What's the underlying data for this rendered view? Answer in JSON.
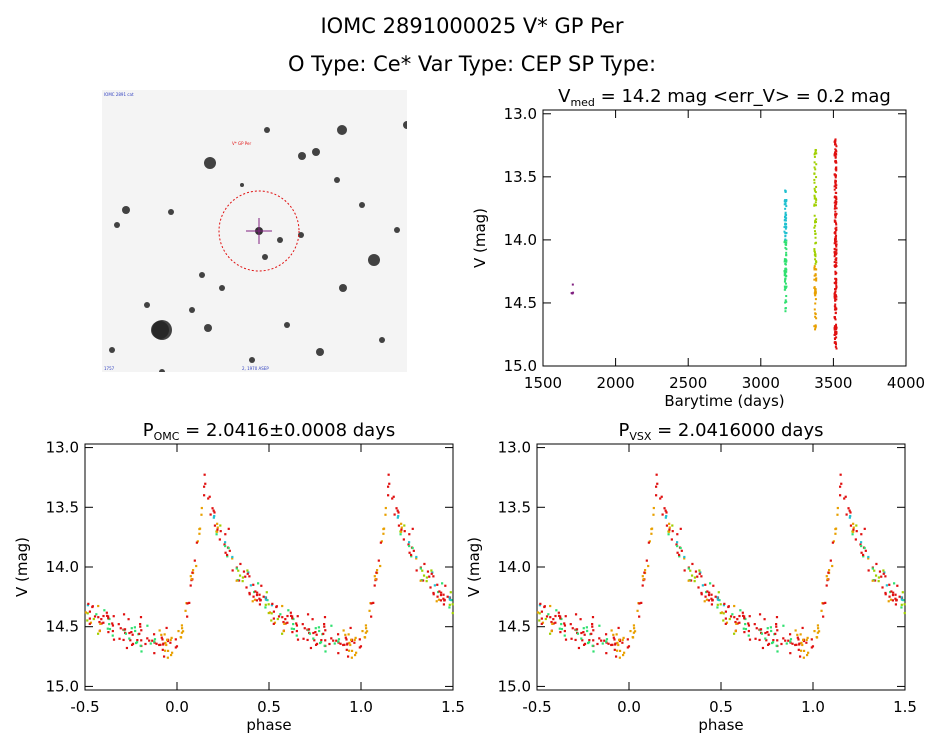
{
  "header": {
    "line1": "IOMC 2891000025    V* GP Per",
    "line2": "O Type: Ce*   Var Type: CEP   SP Type:"
  },
  "colors": {
    "red": "#e01010",
    "orange": "#e8a000",
    "yellow_green": "#a0d000",
    "green": "#30e070",
    "cyan": "#20c0d0",
    "blue": "#3040c0",
    "purple": "#802080"
  },
  "sky_image": {
    "label_top_left": "IOMC 2891 cat",
    "label_target": "V* GP Per",
    "label_bottom_left": "1757",
    "label_bottom_center": "2, 1970 ASEP",
    "circle_color": "#e01010"
  },
  "chart_data": [
    {
      "type": "scatter",
      "title_prefix": "V",
      "title_sub": "med",
      "title_rest": " = 14.2 mag <err_V> = 0.2 mag",
      "xlabel": "Barytime (days)",
      "ylabel": "V (mag)",
      "xlim": [
        1500,
        4000
      ],
      "ylim": [
        15.0,
        12.97
      ],
      "xticks": [
        1500,
        2000,
        2500,
        3000,
        3500,
        4000
      ],
      "yticks": [
        13.0,
        13.5,
        14.0,
        14.5,
        15.0
      ],
      "series": [
        {
          "color": "#802080",
          "x": 1700,
          "ymin": 14.33,
          "ymax": 14.47
        },
        {
          "color": "#20c0d0",
          "x": 3170,
          "ymin": 13.6,
          "ymax": 14.57
        },
        {
          "color": "#a0d000",
          "x": 3375,
          "ymin": 13.25,
          "ymax": 14.72
        },
        {
          "color": "#e01010",
          "x": 3515,
          "ymin": 13.2,
          "ymax": 14.88
        }
      ]
    },
    {
      "type": "scatter",
      "title_prefix": "P",
      "title_sub": "OMC",
      "title_rest": " = 2.0416±0.0008 days",
      "xlabel": "phase",
      "ylabel": "V (mag)",
      "xlim": [
        -0.5,
        1.5
      ],
      "ylim": [
        15.03,
        12.97
      ],
      "xticks": [
        -0.5,
        0.0,
        0.5,
        1.0,
        1.5
      ],
      "xticklabels": [
        "-0.5",
        "0.0",
        "0.5",
        "1.0",
        "1.5"
      ],
      "yticks": [
        13.0,
        13.5,
        14.0,
        14.5,
        15.0
      ],
      "curve": {
        "min_mag": 14.65,
        "max_mag": 13.32,
        "rise_start": 0.0,
        "peak": 0.15
      }
    },
    {
      "type": "scatter",
      "title_prefix": "P",
      "title_sub": "VSX",
      "title_rest": " = 2.0416000 days",
      "xlabel": "phase",
      "ylabel": "V (mag)",
      "xlim": [
        -0.5,
        1.5
      ],
      "ylim": [
        15.03,
        12.97
      ],
      "xticks": [
        -0.5,
        0.0,
        0.5,
        1.0,
        1.5
      ],
      "xticklabels": [
        "-0.5",
        "0.0",
        "0.5",
        "1.0",
        "1.5"
      ],
      "yticks": [
        13.0,
        13.5,
        14.0,
        14.5,
        15.0
      ],
      "curve": {
        "min_mag": 14.65,
        "max_mag": 13.32,
        "rise_start": 0.0,
        "peak": 0.15
      }
    }
  ]
}
